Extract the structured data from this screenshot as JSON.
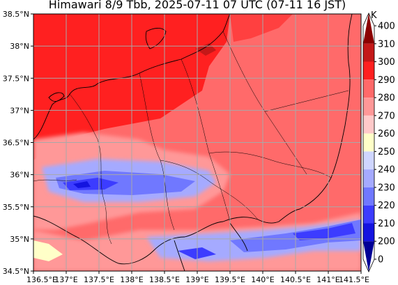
{
  "title": "Himawari 8/9 Tbb, 2025-07-11 07 UTC (07-11 16 JST)",
  "colorbar": {
    "unit": "K",
    "ticks": [
      "400",
      "310",
      "300",
      "290",
      "280",
      "270",
      "260",
      "250",
      "240",
      "230",
      "220",
      "210",
      "200",
      "0"
    ],
    "colors": [
      "#8b0000",
      "#c41818",
      "#ff2020",
      "#ff6a6a",
      "#ff9898",
      "#ffcaca",
      "#ffffc8",
      "#cfd6ff",
      "#a5aaff",
      "#7078ff",
      "#3c3cff",
      "#1414e0",
      "#000096"
    ]
  },
  "axes": {
    "lat_labels": [
      "38.5°N",
      "38°N",
      "37.5°N",
      "37°N",
      "36.5°N",
      "36°N",
      "35.5°N",
      "35°N",
      "34.5°N"
    ],
    "lon_labels": [
      "136.5°E",
      "137°E",
      "137.5°E",
      "138°E",
      "138.5°E",
      "139°E",
      "139.5°E",
      "140°E",
      "140.5°E",
      "141°E",
      "141.5°E"
    ],
    "lon_range": [
      136.5,
      141.5
    ],
    "lat_range": [
      34.5,
      38.5
    ],
    "grid": true
  }
}
